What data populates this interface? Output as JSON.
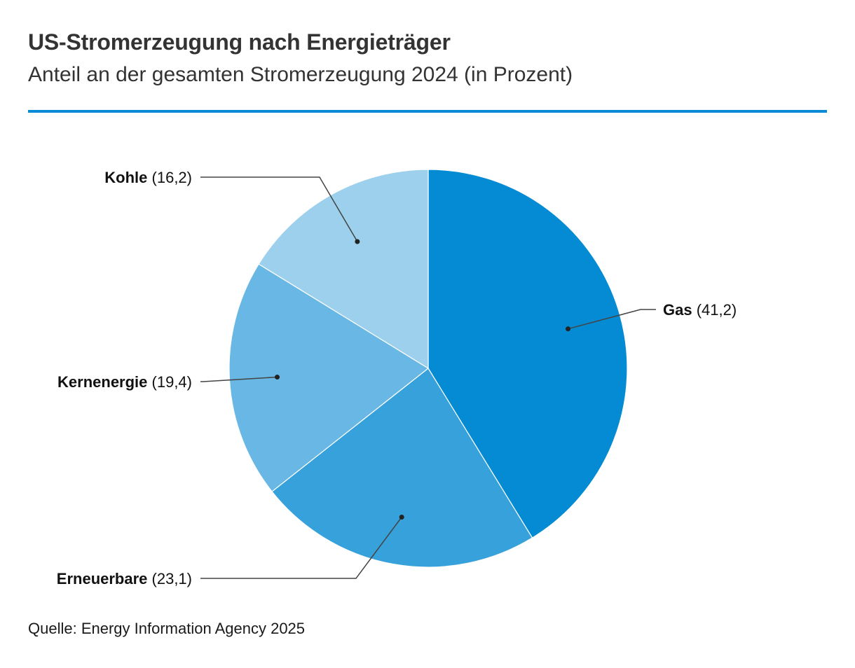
{
  "header": {
    "title": "US-Stromerzeugung nach Energieträger",
    "subtitle": "Anteil an der gesamten Stromerzeugung 2024 (in Prozent)"
  },
  "footer": {
    "source": "Quelle: Energy Information Agency 2025"
  },
  "colors": {
    "accent_rule": "#0a8ad6",
    "slice_stroke": "#ffffff",
    "leader_line": "#444444"
  },
  "chart_data": {
    "type": "pie",
    "title": "US-Stromerzeugung nach Energieträger",
    "subtitle": "Anteil an der gesamten Stromerzeugung 2024 (in Prozent)",
    "unit": "Prozent",
    "start": "12 o'clock, clockwise",
    "slices": [
      {
        "label": "Gas",
        "value": 41.2,
        "value_text": "(41,2)",
        "color": "#058bd3"
      },
      {
        "label": "Erneuerbare",
        "value": 23.1,
        "value_text": "(23,1)",
        "color": "#36a1da"
      },
      {
        "label": "Kernenergie",
        "value": 19.4,
        "value_text": "(19,4)",
        "color": "#68b7e4"
      },
      {
        "label": "Kohle",
        "value": 16.2,
        "value_text": "(16,2)",
        "color": "#9cd0ec"
      }
    ]
  }
}
